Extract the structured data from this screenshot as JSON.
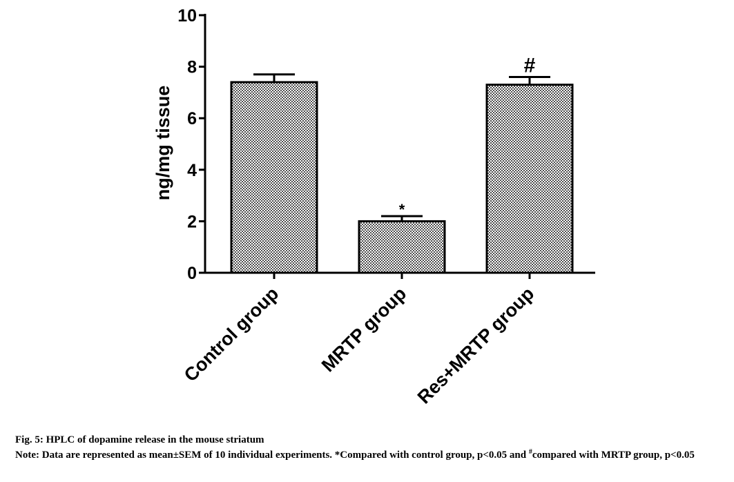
{
  "chart_data": {
    "type": "bar",
    "categories": [
      "Control group",
      "MRTP group",
      "Res+MRTP group"
    ],
    "values": [
      7.4,
      2.0,
      7.3
    ],
    "errors": [
      0.3,
      0.2,
      0.3
    ],
    "annotations": [
      "",
      "*",
      "#"
    ],
    "ylabel": "ng/mg tissue",
    "xlabel": "",
    "ylim": [
      0,
      10
    ],
    "yticks": [
      "0",
      "2",
      "4",
      "6",
      "8",
      "10"
    ],
    "bar_fill": "checkered",
    "colors": {
      "bar": "#555555",
      "bar_light": "#ffffff",
      "axis": "#000000"
    }
  },
  "caption": {
    "title": "Fig. 5: HPLC of dopamine release in the mouse striatum",
    "note_part1": "Note: Data are represented as mean±SEM of 10 individual experiments. *Compared with control group, p<0.05 and ",
    "note_sup": "#",
    "note_part2": "compared with MRTP group, p<0.05"
  }
}
